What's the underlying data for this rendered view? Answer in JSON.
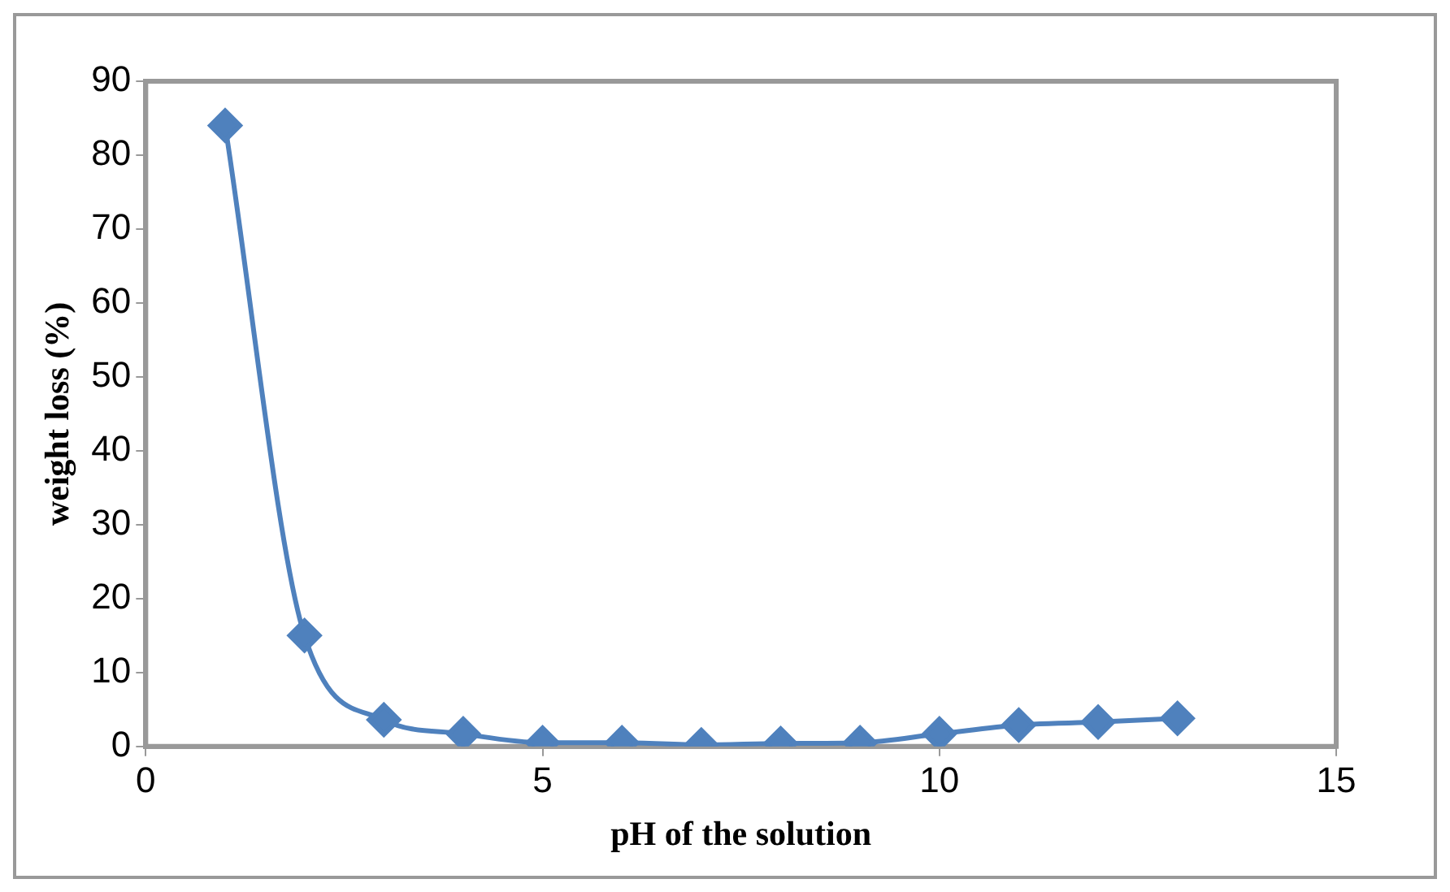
{
  "chart_data": {
    "type": "line",
    "xlabel": "pH of the solution",
    "ylabel": "weight loss (%)",
    "x": [
      1,
      2,
      3,
      4,
      5,
      6,
      7,
      8,
      9,
      10,
      11,
      12,
      13
    ],
    "series": [
      {
        "color": "#4f81bd",
        "values": [
          84,
          15,
          3.6,
          1.7,
          0.5,
          0.5,
          0.2,
          0.4,
          0.5,
          1.7,
          2.9,
          3.3,
          3.8
        ]
      }
    ],
    "xlim": [
      0,
      15
    ],
    "xticks": [
      0,
      5,
      10,
      15
    ],
    "ylim": [
      0,
      90
    ],
    "yticks": [
      0,
      10,
      20,
      30,
      40,
      50,
      60,
      70,
      80,
      90
    ],
    "grid": false,
    "legend": false,
    "marker": "diamond",
    "line_style": "solid"
  }
}
